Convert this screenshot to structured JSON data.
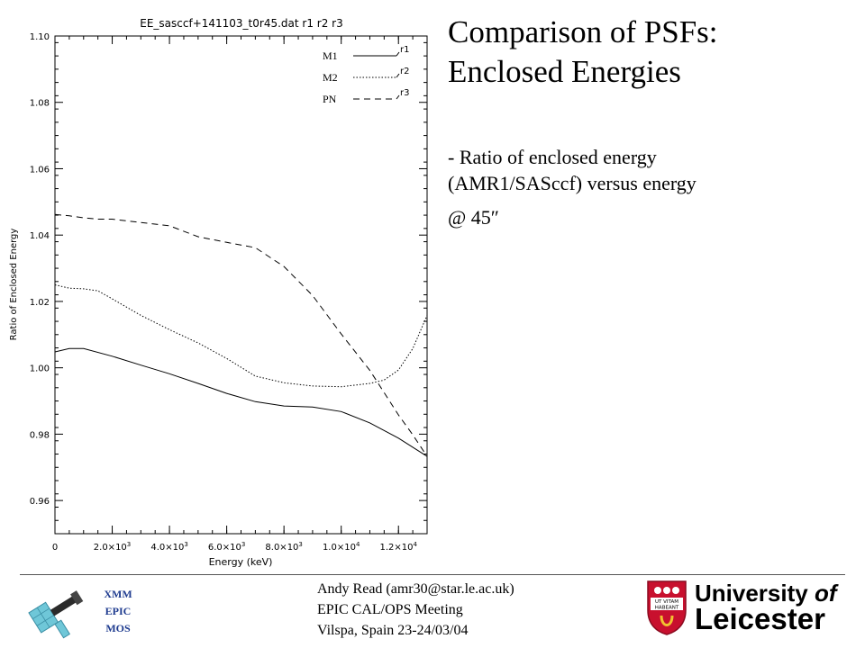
{
  "slide": {
    "title_line1": "Comparison of PSFs:",
    "title_line2": "Enclosed Energies",
    "bullet_line1": "- Ratio of enclosed energy",
    "bullet_line2": "(AMR1/SASccf) versus energy",
    "angle_text": "@ 45″"
  },
  "footer": {
    "line1": "Andy Read (amr30@star.le.ac.uk)",
    "line2": "EPIC CAL/OPS Meeting",
    "line3": "Vilspa, Spain 23-24/03/04",
    "xmm_lines": [
      "XMM",
      "EPIC",
      "MOS"
    ],
    "xmm_color": "#1e3b8f",
    "university_line1": "University",
    "university_of": "of",
    "university_line2": "Leicester",
    "crest_motto": [
      "UT VITAM",
      "HABEANT"
    ],
    "crest_color": "#c8102e"
  },
  "chart_data": {
    "type": "line",
    "title": "EE_sasccf+141103_t0r45.dat r1 r2 r3",
    "xlabel": "Energy (keV)",
    "ylabel": "Ratio of Enclosed Energy",
    "xlim": [
      0,
      13000
    ],
    "ylim": [
      0.95,
      1.1
    ],
    "xticks": [
      {
        "v": 0,
        "label": "0",
        "mant": "",
        "exp": ""
      },
      {
        "v": 2000,
        "label": "",
        "mant": "2.0×10",
        "exp": "3"
      },
      {
        "v": 4000,
        "label": "",
        "mant": "4.0×10",
        "exp": "3"
      },
      {
        "v": 6000,
        "label": "",
        "mant": "6.0×10",
        "exp": "3"
      },
      {
        "v": 8000,
        "label": "",
        "mant": "8.0×10",
        "exp": "3"
      },
      {
        "v": 10000,
        "label": "",
        "mant": "1.0×10",
        "exp": "4"
      },
      {
        "v": 12000,
        "label": "",
        "mant": "1.2×10",
        "exp": "4"
      }
    ],
    "yticks": [
      "0.96",
      "0.98",
      "1.00",
      "1.02",
      "1.04",
      "1.06",
      "1.08",
      "1.10"
    ],
    "grid": false,
    "legend_position": "top-right",
    "series": [
      {
        "name": "r1",
        "legend_label": "M1",
        "dash": "solid",
        "x": [
          0,
          500,
          1000,
          2000,
          3000,
          4000,
          5000,
          6000,
          7000,
          8000,
          9000,
          10000,
          11000,
          12000,
          13000
        ],
        "y": [
          1.0048,
          1.0058,
          1.0058,
          1.0035,
          1.0008,
          0.9982,
          0.9953,
          0.9923,
          0.9898,
          0.9885,
          0.9882,
          0.9868,
          0.9834,
          0.9788,
          0.9733
        ]
      },
      {
        "name": "r2",
        "legend_label": "M2",
        "dash": "dotted",
        "x": [
          0,
          500,
          1000,
          1500,
          2000,
          3000,
          4000,
          5000,
          6000,
          7000,
          8000,
          9000,
          10000,
          11000,
          11500,
          12000,
          12500,
          13000
        ],
        "y": [
          1.025,
          1.024,
          1.0238,
          1.0232,
          1.0208,
          1.0158,
          1.0115,
          1.0075,
          1.0028,
          0.9975,
          0.9955,
          0.9945,
          0.9943,
          0.9953,
          0.9963,
          0.9993,
          1.0058,
          1.0158
        ]
      },
      {
        "name": "r3",
        "legend_label": "PN",
        "dash": "dashed",
        "x": [
          0,
          500,
          1000,
          1500,
          2000,
          3000,
          4000,
          5000,
          6000,
          7000,
          8000,
          9000,
          10000,
          11000,
          12000,
          12500,
          13000
        ],
        "y": [
          1.0462,
          1.0458,
          1.0452,
          1.0448,
          1.0448,
          1.0438,
          1.0428,
          1.0395,
          1.0378,
          1.0362,
          1.0305,
          1.0218,
          1.0102,
          0.9992,
          0.9858,
          0.9798,
          0.9733
        ]
      }
    ]
  }
}
